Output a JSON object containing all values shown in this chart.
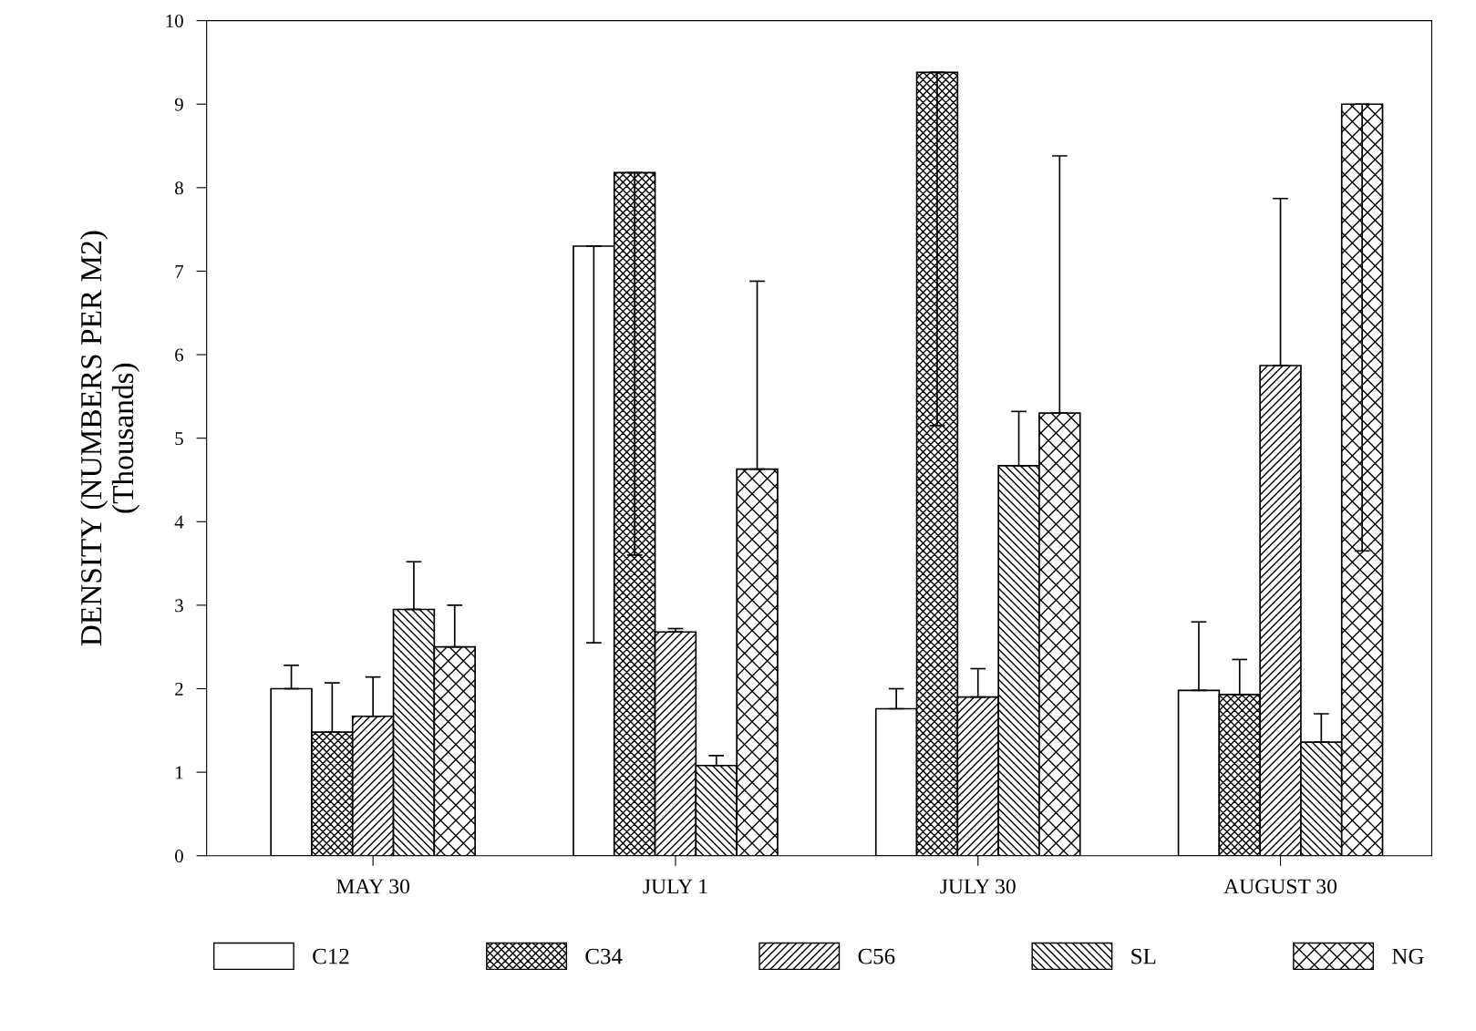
{
  "chart_data": {
    "type": "bar",
    "ylabel": "DENSITY (NUMBERS PER M2)\n(Thousands)",
    "categories": [
      "MAY 30",
      "JULY 1",
      "JULY 30",
      "AUGUST 30"
    ],
    "ylim": [
      0,
      10
    ],
    "yticks": [
      0,
      1,
      2,
      3,
      4,
      5,
      6,
      7,
      8,
      9,
      10
    ],
    "grid": false,
    "legend": "bottom",
    "series": [
      {
        "name": "C12",
        "color": "#ffffff",
        "values": [
          2.0,
          7.3,
          1.76,
          1.98
        ],
        "errors": [
          [
            2.0,
            2.28
          ],
          [
            2.55,
            7.3
          ],
          [
            1.76,
            2.0
          ],
          [
            1.98,
            2.8
          ]
        ]
      },
      {
        "name": "C34",
        "color": "#000000",
        "values": [
          1.48,
          8.18,
          9.38,
          1.93
        ],
        "errors": [
          [
            1.48,
            2.07
          ],
          [
            3.6,
            8.18
          ],
          [
            5.15,
            9.38
          ],
          [
            1.93,
            2.35
          ]
        ]
      },
      {
        "name": "C56",
        "color": "#000000",
        "values": [
          1.67,
          2.68,
          1.9,
          5.87
        ],
        "errors": [
          [
            1.67,
            2.14
          ],
          [
            2.68,
            2.72
          ],
          [
            1.9,
            2.24
          ],
          [
            5.87,
            7.87
          ]
        ]
      },
      {
        "name": "SL",
        "color": "#000000",
        "values": [
          2.95,
          1.08,
          4.67,
          1.36
        ],
        "errors": [
          [
            2.95,
            3.52
          ],
          [
            1.08,
            1.2
          ],
          [
            4.67,
            5.32
          ],
          [
            1.36,
            1.7
          ]
        ]
      },
      {
        "name": "NG",
        "color": "#000000",
        "values": [
          2.5,
          4.63,
          5.3,
          9.0
        ],
        "errors": [
          [
            2.5,
            3.0
          ],
          [
            4.63,
            6.88
          ],
          [
            5.3,
            8.38
          ],
          [
            3.65,
            9.0
          ]
        ]
      }
    ]
  }
}
